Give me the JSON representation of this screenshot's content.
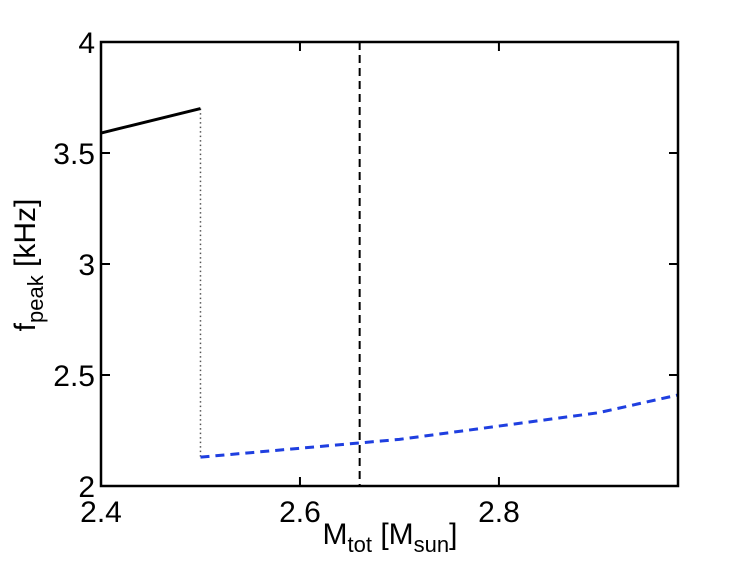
{
  "chart_data": {
    "type": "line",
    "xlim": [
      2.4,
      2.98
    ],
    "ylim": [
      2,
      4
    ],
    "x_ticks": [
      {
        "value": 2.4,
        "label": "2.4"
      },
      {
        "value": 2.6,
        "label": "2.6"
      },
      {
        "value": 2.8,
        "label": "2.8"
      }
    ],
    "y_ticks": [
      {
        "value": 2,
        "label": "2"
      },
      {
        "value": 2.5,
        "label": "2.5"
      },
      {
        "value": 3,
        "label": "3"
      },
      {
        "value": 3.5,
        "label": "3.5"
      },
      {
        "value": 4,
        "label": "4"
      }
    ],
    "xlabel": {
      "main": "M",
      "sub": "tot",
      "rest": " [M",
      "sub2": "sun",
      "end": "]"
    },
    "ylabel": {
      "main": "f",
      "sub": "peak",
      "rest": " [kHz]"
    },
    "grid": false,
    "series": [
      {
        "style": "solid",
        "color": "#000000",
        "x": [
          2.4,
          2.5
        ],
        "y": [
          3.59,
          3.7
        ]
      },
      {
        "style": "dashed",
        "color": "#1f3fe0",
        "x": [
          2.5,
          2.55,
          2.6,
          2.65,
          2.7,
          2.75,
          2.8,
          2.85,
          2.9,
          2.98
        ],
        "y": [
          2.13,
          2.15,
          2.17,
          2.19,
          2.21,
          2.24,
          2.27,
          2.3,
          2.33,
          2.41
        ]
      }
    ],
    "connector": {
      "style": "dotted",
      "color": "#555555",
      "x": 2.5,
      "y_from": 3.7,
      "y_to": 2.13
    },
    "vline": {
      "style": "dashed",
      "color": "#000000",
      "x": 2.66
    }
  }
}
